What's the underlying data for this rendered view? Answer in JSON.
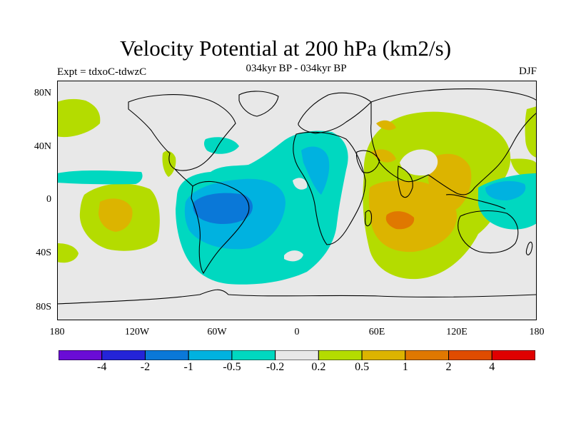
{
  "title": "Velocity Potential at 200 hPa (km2/s)",
  "subtitle": "034kyr BP - 034kyr BP",
  "left_label": "Expt = tdxoC-tdwzC",
  "right_label": "DJF",
  "y_ticks": [
    "80N",
    "40N",
    "0",
    "40S",
    "80S"
  ],
  "x_ticks": [
    "180",
    "120W",
    "60W",
    "0",
    "60E",
    "120E",
    "180"
  ],
  "colorbar": {
    "colors": [
      "#6a0cd6",
      "#2424d8",
      "#0a78d8",
      "#00b2e0",
      "#00d8c0",
      "#e8e8e8",
      "#b4dc00",
      "#dcb400",
      "#e07800",
      "#e04c00",
      "#e00000"
    ],
    "labels": [
      "-4",
      "-2",
      "-1",
      "-0.5",
      "-0.2",
      "0.2",
      "0.5",
      "1",
      "2",
      "4"
    ]
  },
  "map": {
    "background": "#e8e8e8",
    "lon_range": [
      -180,
      180
    ],
    "lat_range": [
      -90,
      90
    ]
  }
}
